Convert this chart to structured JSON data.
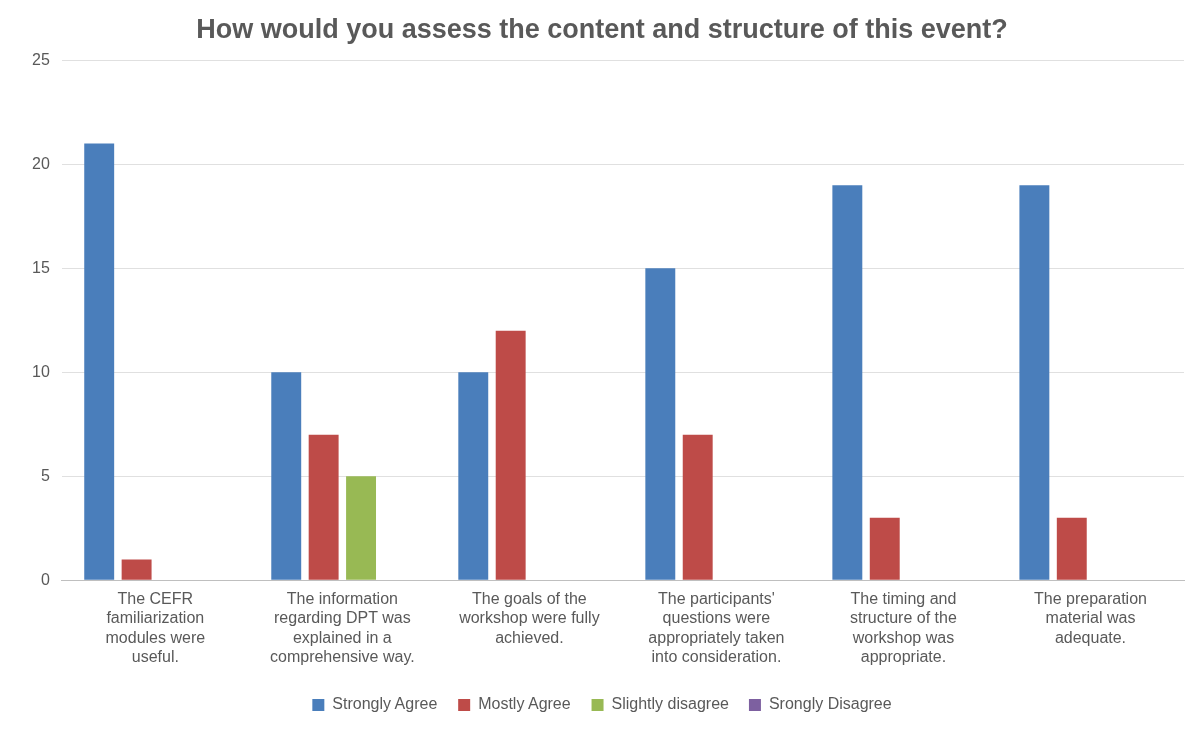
{
  "chart_data": {
    "type": "bar",
    "title": "How would you assess the content and structure of this event?",
    "categories": [
      "The CEFR familiarization modules were useful.",
      "The information regarding DPT was explained in a comprehensive way.",
      "The goals of the workshop were fully achieved.",
      "The participants' questions were appropriately taken into consideration.",
      "The timing and structure of the workshop was appropriate.",
      "The preparation material was adequate."
    ],
    "series": [
      {
        "name": "Strongly Agree",
        "color": "#4a7ebb",
        "values": [
          21,
          10,
          10,
          15,
          19,
          19
        ]
      },
      {
        "name": "Mostly Agree",
        "color": "#be4b48",
        "values": [
          1,
          7,
          12,
          7,
          3,
          3
        ]
      },
      {
        "name": "Slightly disagree",
        "color": "#98b954",
        "values": [
          0,
          5,
          0,
          0,
          0,
          0
        ]
      },
      {
        "name": "Srongly Disagree",
        "color": "#7d60a0",
        "values": [
          0,
          0,
          0,
          0,
          0,
          0
        ]
      }
    ],
    "ylim": [
      0,
      25
    ],
    "yticks": [
      0,
      5,
      10,
      15,
      20,
      25
    ],
    "grid": "y",
    "legend": "bottom"
  }
}
